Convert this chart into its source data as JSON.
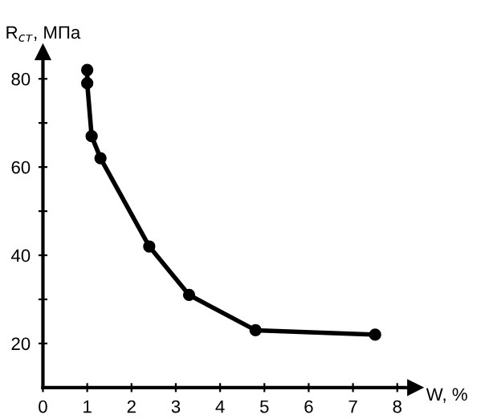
{
  "chart_data": {
    "type": "line",
    "xlabel": "W, %",
    "ylabel": "R$_{ст}$, МПа",
    "x": [
      1.0,
      1.0,
      1.1,
      1.3,
      2.4,
      3.3,
      4.8,
      7.5
    ],
    "series": [
      {
        "color": "#000000",
        "values": [
          82,
          79,
          67,
          62,
          42,
          31,
          23,
          22
        ]
      }
    ],
    "xlim": [
      0,
      8.4
    ],
    "ylim": [
      10,
      86
    ],
    "xticks": [
      0,
      1,
      2,
      3,
      4,
      5,
      6,
      7,
      8
    ],
    "yticks": [
      20,
      {
        "value": 30,
        "label": null
      },
      40,
      {
        "value": 50,
        "label": null
      },
      60,
      {
        "value": 70,
        "label": null
      },
      80
    ],
    "marker": "circle",
    "line_style": "solid",
    "grid": false
  }
}
